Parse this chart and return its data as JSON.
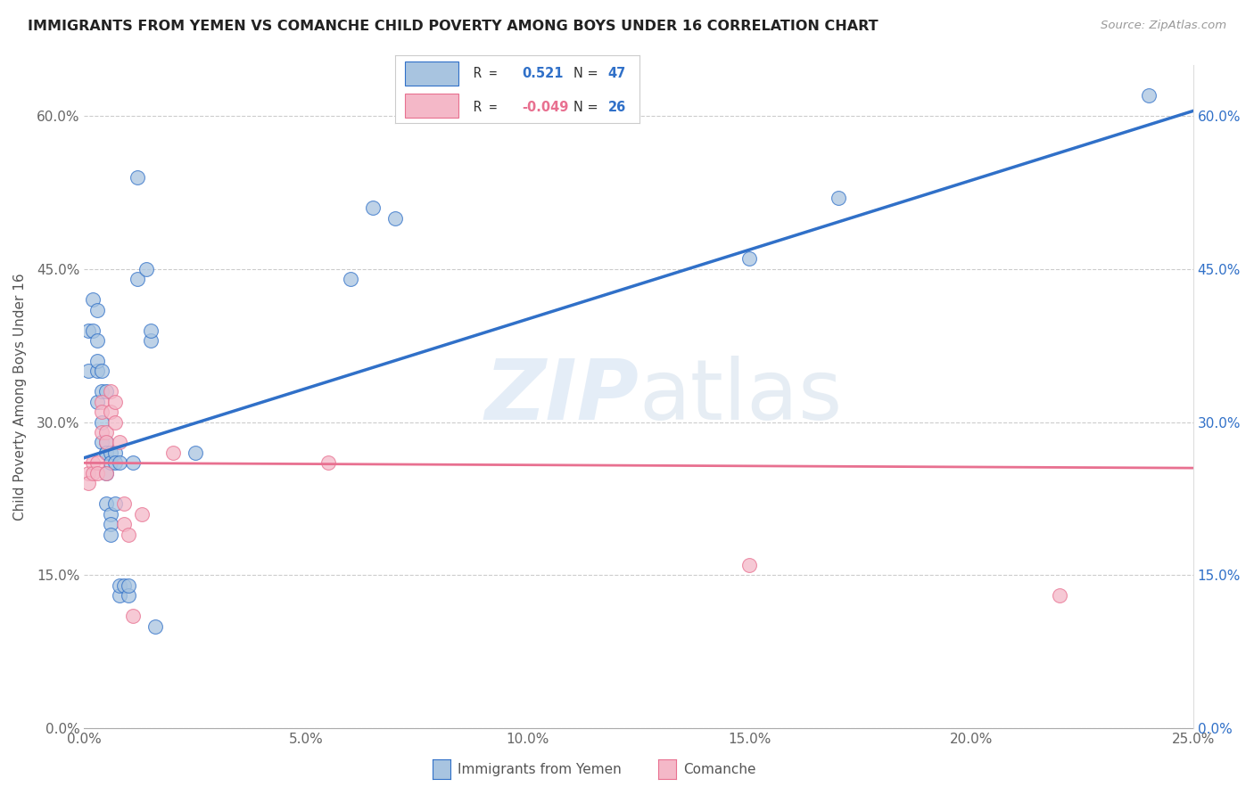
{
  "title": "IMMIGRANTS FROM YEMEN VS COMANCHE CHILD POVERTY AMONG BOYS UNDER 16 CORRELATION CHART",
  "source": "Source: ZipAtlas.com",
  "ylabel_label": "Child Poverty Among Boys Under 16",
  "legend_label1": "Immigrants from Yemen",
  "legend_label2": "Comanche",
  "r1": 0.521,
  "n1": 47,
  "r2": -0.049,
  "n2": 26,
  "xmin": 0.0,
  "xmax": 0.25,
  "ymin": 0.0,
  "ymax": 0.65,
  "yticks": [
    0.0,
    0.15,
    0.3,
    0.45,
    0.6
  ],
  "xticks": [
    0.0,
    0.05,
    0.1,
    0.15,
    0.2,
    0.25
  ],
  "color_blue": "#a8c4e0",
  "color_pink": "#f4b8c8",
  "line_blue": "#3070c8",
  "line_pink": "#e87090",
  "background": "#ffffff",
  "blue_line_x0": 0.0,
  "blue_line_y0": 0.265,
  "blue_line_x1": 0.25,
  "blue_line_y1": 0.605,
  "pink_line_x0": 0.0,
  "pink_line_y0": 0.26,
  "pink_line_x1": 0.25,
  "pink_line_y1": 0.255,
  "blue_points": [
    [
      0.001,
      0.39
    ],
    [
      0.001,
      0.35
    ],
    [
      0.002,
      0.39
    ],
    [
      0.002,
      0.42
    ],
    [
      0.003,
      0.38
    ],
    [
      0.003,
      0.35
    ],
    [
      0.003,
      0.32
    ],
    [
      0.003,
      0.36
    ],
    [
      0.003,
      0.41
    ],
    [
      0.004,
      0.35
    ],
    [
      0.004,
      0.33
    ],
    [
      0.004,
      0.3
    ],
    [
      0.004,
      0.28
    ],
    [
      0.005,
      0.33
    ],
    [
      0.005,
      0.27
    ],
    [
      0.005,
      0.28
    ],
    [
      0.005,
      0.27
    ],
    [
      0.005,
      0.25
    ],
    [
      0.005,
      0.22
    ],
    [
      0.006,
      0.27
    ],
    [
      0.006,
      0.26
    ],
    [
      0.006,
      0.21
    ],
    [
      0.006,
      0.2
    ],
    [
      0.006,
      0.19
    ],
    [
      0.007,
      0.27
    ],
    [
      0.007,
      0.26
    ],
    [
      0.007,
      0.22
    ],
    [
      0.008,
      0.26
    ],
    [
      0.008,
      0.13
    ],
    [
      0.008,
      0.14
    ],
    [
      0.009,
      0.14
    ],
    [
      0.01,
      0.13
    ],
    [
      0.01,
      0.14
    ],
    [
      0.011,
      0.26
    ],
    [
      0.012,
      0.54
    ],
    [
      0.012,
      0.44
    ],
    [
      0.014,
      0.45
    ],
    [
      0.015,
      0.38
    ],
    [
      0.015,
      0.39
    ],
    [
      0.016,
      0.1
    ],
    [
      0.025,
      0.27
    ],
    [
      0.06,
      0.44
    ],
    [
      0.065,
      0.51
    ],
    [
      0.07,
      0.5
    ],
    [
      0.15,
      0.46
    ],
    [
      0.17,
      0.52
    ],
    [
      0.24,
      0.62
    ]
  ],
  "pink_points": [
    [
      0.001,
      0.25
    ],
    [
      0.001,
      0.24
    ],
    [
      0.002,
      0.26
    ],
    [
      0.002,
      0.25
    ],
    [
      0.003,
      0.26
    ],
    [
      0.003,
      0.25
    ],
    [
      0.004,
      0.32
    ],
    [
      0.004,
      0.31
    ],
    [
      0.004,
      0.29
    ],
    [
      0.005,
      0.29
    ],
    [
      0.005,
      0.28
    ],
    [
      0.005,
      0.25
    ],
    [
      0.006,
      0.31
    ],
    [
      0.006,
      0.33
    ],
    [
      0.007,
      0.32
    ],
    [
      0.007,
      0.3
    ],
    [
      0.008,
      0.28
    ],
    [
      0.009,
      0.22
    ],
    [
      0.009,
      0.2
    ],
    [
      0.01,
      0.19
    ],
    [
      0.011,
      0.11
    ],
    [
      0.013,
      0.21
    ],
    [
      0.02,
      0.27
    ],
    [
      0.055,
      0.26
    ],
    [
      0.15,
      0.16
    ],
    [
      0.22,
      0.13
    ]
  ]
}
